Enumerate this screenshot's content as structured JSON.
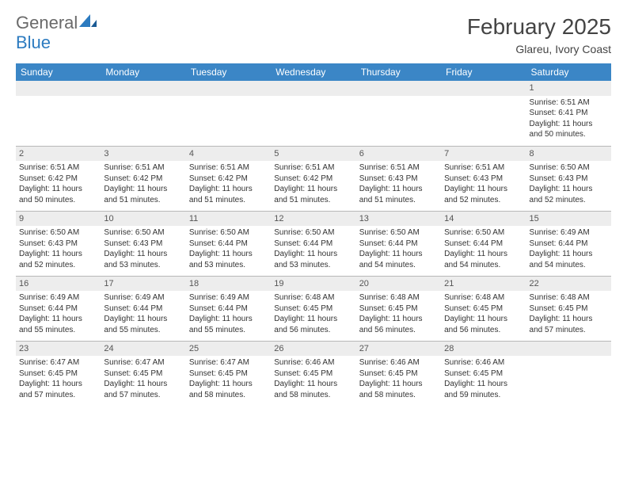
{
  "logo": {
    "text_general": "General",
    "text_blue": "Blue"
  },
  "title": "February 2025",
  "location": "Glareu, Ivory Coast",
  "colors": {
    "header_bg": "#3b86c6",
    "header_text": "#ffffff",
    "daynum_bg": "#ededed",
    "border": "#b8b8b8",
    "logo_gray": "#6a6a6a",
    "logo_blue": "#2c7bc0"
  },
  "day_headers": [
    "Sunday",
    "Monday",
    "Tuesday",
    "Wednesday",
    "Thursday",
    "Friday",
    "Saturday"
  ],
  "weeks": [
    [
      {
        "n": ""
      },
      {
        "n": ""
      },
      {
        "n": ""
      },
      {
        "n": ""
      },
      {
        "n": ""
      },
      {
        "n": ""
      },
      {
        "n": "1",
        "sr": "Sunrise: 6:51 AM",
        "ss": "Sunset: 6:41 PM",
        "dl1": "Daylight: 11 hours",
        "dl2": "and 50 minutes."
      }
    ],
    [
      {
        "n": "2",
        "sr": "Sunrise: 6:51 AM",
        "ss": "Sunset: 6:42 PM",
        "dl1": "Daylight: 11 hours",
        "dl2": "and 50 minutes."
      },
      {
        "n": "3",
        "sr": "Sunrise: 6:51 AM",
        "ss": "Sunset: 6:42 PM",
        "dl1": "Daylight: 11 hours",
        "dl2": "and 51 minutes."
      },
      {
        "n": "4",
        "sr": "Sunrise: 6:51 AM",
        "ss": "Sunset: 6:42 PM",
        "dl1": "Daylight: 11 hours",
        "dl2": "and 51 minutes."
      },
      {
        "n": "5",
        "sr": "Sunrise: 6:51 AM",
        "ss": "Sunset: 6:42 PM",
        "dl1": "Daylight: 11 hours",
        "dl2": "and 51 minutes."
      },
      {
        "n": "6",
        "sr": "Sunrise: 6:51 AM",
        "ss": "Sunset: 6:43 PM",
        "dl1": "Daylight: 11 hours",
        "dl2": "and 51 minutes."
      },
      {
        "n": "7",
        "sr": "Sunrise: 6:51 AM",
        "ss": "Sunset: 6:43 PM",
        "dl1": "Daylight: 11 hours",
        "dl2": "and 52 minutes."
      },
      {
        "n": "8",
        "sr": "Sunrise: 6:50 AM",
        "ss": "Sunset: 6:43 PM",
        "dl1": "Daylight: 11 hours",
        "dl2": "and 52 minutes."
      }
    ],
    [
      {
        "n": "9",
        "sr": "Sunrise: 6:50 AM",
        "ss": "Sunset: 6:43 PM",
        "dl1": "Daylight: 11 hours",
        "dl2": "and 52 minutes."
      },
      {
        "n": "10",
        "sr": "Sunrise: 6:50 AM",
        "ss": "Sunset: 6:43 PM",
        "dl1": "Daylight: 11 hours",
        "dl2": "and 53 minutes."
      },
      {
        "n": "11",
        "sr": "Sunrise: 6:50 AM",
        "ss": "Sunset: 6:44 PM",
        "dl1": "Daylight: 11 hours",
        "dl2": "and 53 minutes."
      },
      {
        "n": "12",
        "sr": "Sunrise: 6:50 AM",
        "ss": "Sunset: 6:44 PM",
        "dl1": "Daylight: 11 hours",
        "dl2": "and 53 minutes."
      },
      {
        "n": "13",
        "sr": "Sunrise: 6:50 AM",
        "ss": "Sunset: 6:44 PM",
        "dl1": "Daylight: 11 hours",
        "dl2": "and 54 minutes."
      },
      {
        "n": "14",
        "sr": "Sunrise: 6:50 AM",
        "ss": "Sunset: 6:44 PM",
        "dl1": "Daylight: 11 hours",
        "dl2": "and 54 minutes."
      },
      {
        "n": "15",
        "sr": "Sunrise: 6:49 AM",
        "ss": "Sunset: 6:44 PM",
        "dl1": "Daylight: 11 hours",
        "dl2": "and 54 minutes."
      }
    ],
    [
      {
        "n": "16",
        "sr": "Sunrise: 6:49 AM",
        "ss": "Sunset: 6:44 PM",
        "dl1": "Daylight: 11 hours",
        "dl2": "and 55 minutes."
      },
      {
        "n": "17",
        "sr": "Sunrise: 6:49 AM",
        "ss": "Sunset: 6:44 PM",
        "dl1": "Daylight: 11 hours",
        "dl2": "and 55 minutes."
      },
      {
        "n": "18",
        "sr": "Sunrise: 6:49 AM",
        "ss": "Sunset: 6:44 PM",
        "dl1": "Daylight: 11 hours",
        "dl2": "and 55 minutes."
      },
      {
        "n": "19",
        "sr": "Sunrise: 6:48 AM",
        "ss": "Sunset: 6:45 PM",
        "dl1": "Daylight: 11 hours",
        "dl2": "and 56 minutes."
      },
      {
        "n": "20",
        "sr": "Sunrise: 6:48 AM",
        "ss": "Sunset: 6:45 PM",
        "dl1": "Daylight: 11 hours",
        "dl2": "and 56 minutes."
      },
      {
        "n": "21",
        "sr": "Sunrise: 6:48 AM",
        "ss": "Sunset: 6:45 PM",
        "dl1": "Daylight: 11 hours",
        "dl2": "and 56 minutes."
      },
      {
        "n": "22",
        "sr": "Sunrise: 6:48 AM",
        "ss": "Sunset: 6:45 PM",
        "dl1": "Daylight: 11 hours",
        "dl2": "and 57 minutes."
      }
    ],
    [
      {
        "n": "23",
        "sr": "Sunrise: 6:47 AM",
        "ss": "Sunset: 6:45 PM",
        "dl1": "Daylight: 11 hours",
        "dl2": "and 57 minutes."
      },
      {
        "n": "24",
        "sr": "Sunrise: 6:47 AM",
        "ss": "Sunset: 6:45 PM",
        "dl1": "Daylight: 11 hours",
        "dl2": "and 57 minutes."
      },
      {
        "n": "25",
        "sr": "Sunrise: 6:47 AM",
        "ss": "Sunset: 6:45 PM",
        "dl1": "Daylight: 11 hours",
        "dl2": "and 58 minutes."
      },
      {
        "n": "26",
        "sr": "Sunrise: 6:46 AM",
        "ss": "Sunset: 6:45 PM",
        "dl1": "Daylight: 11 hours",
        "dl2": "and 58 minutes."
      },
      {
        "n": "27",
        "sr": "Sunrise: 6:46 AM",
        "ss": "Sunset: 6:45 PM",
        "dl1": "Daylight: 11 hours",
        "dl2": "and 58 minutes."
      },
      {
        "n": "28",
        "sr": "Sunrise: 6:46 AM",
        "ss": "Sunset: 6:45 PM",
        "dl1": "Daylight: 11 hours",
        "dl2": "and 59 minutes."
      },
      {
        "n": ""
      }
    ]
  ]
}
